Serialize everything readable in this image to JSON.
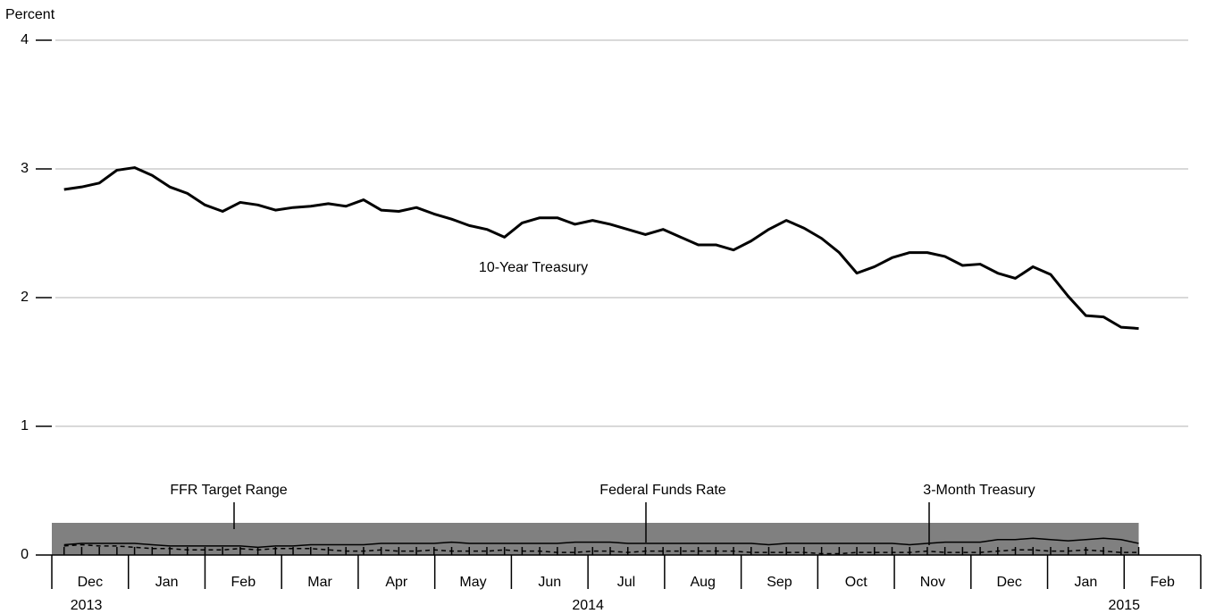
{
  "chart_data": {
    "type": "line",
    "y_label": "Percent",
    "ylim": [
      0,
      4
    ],
    "yticks": [
      0,
      1,
      2,
      3,
      4
    ],
    "grid": true,
    "xlim": [
      0,
      15
    ],
    "xticks": [
      0,
      1,
      2,
      3,
      4,
      5,
      6,
      7,
      8,
      9,
      10,
      11,
      12,
      13,
      14,
      15
    ],
    "months": [
      "Dec",
      "Jan",
      "Feb",
      "Mar",
      "Apr",
      "May",
      "Jun",
      "Jul",
      "Aug",
      "Sep",
      "Oct",
      "Nov",
      "Dec",
      "Jan",
      "Feb"
    ],
    "years": [
      "2013",
      "2014",
      "2015"
    ],
    "x": [
      0.16,
      0.39,
      0.62,
      0.85,
      1.08,
      1.31,
      1.54,
      1.77,
      2.0,
      2.23,
      2.46,
      2.69,
      2.92,
      3.15,
      3.38,
      3.61,
      3.84,
      4.07,
      4.3,
      4.53,
      4.76,
      4.99,
      5.22,
      5.45,
      5.68,
      5.91,
      6.14,
      6.37,
      6.6,
      6.83,
      7.06,
      7.29,
      7.52,
      7.75,
      7.98,
      8.21,
      8.44,
      8.67,
      8.9,
      9.13,
      9.36,
      9.59,
      9.82,
      10.05,
      10.28,
      10.51,
      10.74,
      10.97,
      11.2,
      11.43,
      11.66,
      11.89,
      12.12,
      12.35,
      12.58,
      12.81,
      13.04,
      13.27,
      13.5,
      13.73,
      13.96,
      14.19
    ],
    "band": {
      "name": "FFR Target Range",
      "color": "#808080",
      "x": [
        0,
        14.19
      ],
      "low": [
        0,
        0
      ],
      "high": [
        0.25,
        0.25
      ]
    },
    "series": [
      {
        "name": "10-Year Treasury",
        "color": "#000000",
        "line_style": "solid",
        "values": [
          2.84,
          2.86,
          2.89,
          2.99,
          3.01,
          2.95,
          2.86,
          2.81,
          2.72,
          2.67,
          2.74,
          2.72,
          2.68,
          2.7,
          2.71,
          2.73,
          2.71,
          2.76,
          2.68,
          2.67,
          2.7,
          2.65,
          2.61,
          2.56,
          2.53,
          2.47,
          2.58,
          2.62,
          2.62,
          2.57,
          2.6,
          2.57,
          2.53,
          2.49,
          2.53,
          2.47,
          2.41,
          2.41,
          2.37,
          2.44,
          2.53,
          2.6,
          2.54,
          2.46,
          2.35,
          2.19,
          2.24,
          2.31,
          2.35,
          2.35,
          2.32,
          2.25,
          2.26,
          2.19,
          2.15,
          2.24,
          2.18,
          2.01,
          1.86,
          1.85,
          1.77,
          1.76
        ]
      },
      {
        "name": "Federal Funds Rate",
        "color": "#000000",
        "line_style": "solid",
        "values": [
          0.08,
          0.09,
          0.09,
          0.09,
          0.09,
          0.08,
          0.07,
          0.07,
          0.07,
          0.07,
          0.07,
          0.06,
          0.07,
          0.07,
          0.08,
          0.08,
          0.08,
          0.08,
          0.09,
          0.09,
          0.09,
          0.09,
          0.1,
          0.09,
          0.09,
          0.09,
          0.09,
          0.09,
          0.09,
          0.1,
          0.1,
          0.1,
          0.09,
          0.09,
          0.09,
          0.09,
          0.09,
          0.09,
          0.09,
          0.09,
          0.08,
          0.09,
          0.09,
          0.09,
          0.09,
          0.09,
          0.09,
          0.09,
          0.08,
          0.09,
          0.1,
          0.1,
          0.1,
          0.12,
          0.12,
          0.13,
          0.12,
          0.11,
          0.12,
          0.13,
          0.12,
          0.09
        ]
      },
      {
        "name": "3-Month Treasury",
        "color": "#000000",
        "line_style": "dashed",
        "values": [
          0.07,
          0.08,
          0.07,
          0.07,
          0.06,
          0.05,
          0.05,
          0.04,
          0.04,
          0.04,
          0.05,
          0.04,
          0.05,
          0.05,
          0.05,
          0.04,
          0.03,
          0.03,
          0.04,
          0.03,
          0.03,
          0.04,
          0.03,
          0.03,
          0.03,
          0.04,
          0.03,
          0.03,
          0.02,
          0.02,
          0.03,
          0.03,
          0.02,
          0.03,
          0.03,
          0.03,
          0.03,
          0.03,
          0.03,
          0.02,
          0.02,
          0.02,
          0.02,
          0.01,
          0.01,
          0.02,
          0.02,
          0.02,
          0.02,
          0.03,
          0.02,
          0.02,
          0.02,
          0.03,
          0.04,
          0.04,
          0.03,
          0.03,
          0.04,
          0.03,
          0.02,
          0.02
        ]
      }
    ]
  }
}
